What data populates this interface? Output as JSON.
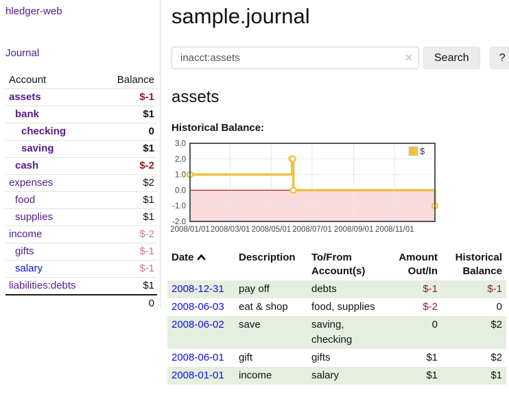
{
  "sidebar": {
    "app_title": "hledger-web",
    "journal_link": "Journal",
    "account_header": "Account",
    "balance_header": "Balance",
    "accounts": [
      {
        "name": "assets",
        "balance": "$-1"
      },
      {
        "name": "bank",
        "balance": "$1"
      },
      {
        "name": "checking",
        "balance": "0"
      },
      {
        "name": "saving",
        "balance": "$1"
      },
      {
        "name": "cash",
        "balance": "$-2"
      },
      {
        "name": "expenses",
        "balance": "$2"
      },
      {
        "name": "food",
        "balance": "$1"
      },
      {
        "name": "supplies",
        "balance": "$1"
      },
      {
        "name": "income",
        "balance": "$-2"
      },
      {
        "name": "gifts",
        "balance": "$-1"
      },
      {
        "name": "salary",
        "balance": "$-1"
      },
      {
        "name": "liabilities:debts",
        "balance": "$1"
      }
    ],
    "total": "0"
  },
  "header": {
    "title": "sample.journal"
  },
  "search": {
    "value": "inacct:assets",
    "clear_icon": "✕",
    "search_button": "Search",
    "help_button": "?"
  },
  "main": {
    "account_heading": "assets",
    "chart_label": "Historical Balance:"
  },
  "chart_data": {
    "type": "line",
    "title": "Historical Balance",
    "step": true,
    "series": [
      {
        "name": "$",
        "points": [
          [
            "2008-01-01",
            1
          ],
          [
            "2008-06-01",
            2
          ],
          [
            "2008-06-02",
            2
          ],
          [
            "2008-06-03",
            0
          ],
          [
            "2008-12-31",
            -1
          ]
        ]
      }
    ],
    "xrange": [
      "2008-01-01",
      "2008-12-31"
    ],
    "ylim": [
      -2,
      3
    ],
    "yticks": [
      3,
      2,
      1,
      0,
      -1,
      -2
    ],
    "xticks": [
      {
        "date": "2008-01-01",
        "label": "2008/01/01"
      },
      {
        "date": "2008-03-01",
        "label": "2008/03/01"
      },
      {
        "date": "2008-05-01",
        "label": "2008/05/01"
      },
      {
        "date": "2008-07-01",
        "label": "2008/07/01"
      },
      {
        "date": "2008-09-01",
        "label": "2008/09/01"
      },
      {
        "date": "2008-11-01",
        "label": "2008/11/01"
      }
    ],
    "legend": {
      "label": "$",
      "position": "top-right"
    },
    "line_color": "#edc240",
    "negative_region_color": "#fadbdb",
    "zero_line_color": "#8b0000",
    "grid": true
  },
  "register": {
    "headers": {
      "date": "Date",
      "description": "Description",
      "accounts": "To/From Account(s)",
      "amount": "Amount Out/In",
      "balance": "Historical Balance"
    },
    "rows": [
      {
        "date": "2008-12-31",
        "description": "pay off",
        "accounts": "debts",
        "amount": "$-1",
        "balance": "$-1"
      },
      {
        "date": "2008-06-03",
        "description": "eat & shop",
        "accounts": "food, supplies",
        "amount": "$-2",
        "balance": "0"
      },
      {
        "date": "2008-06-02",
        "description": "save",
        "accounts": "saving, checking",
        "amount": "0",
        "balance": "$2"
      },
      {
        "date": "2008-06-01",
        "description": "gift",
        "accounts": "gifts",
        "amount": "$1",
        "balance": "$2"
      },
      {
        "date": "2008-01-01",
        "description": "income",
        "accounts": "salary",
        "amount": "$1",
        "balance": "$1"
      }
    ]
  }
}
